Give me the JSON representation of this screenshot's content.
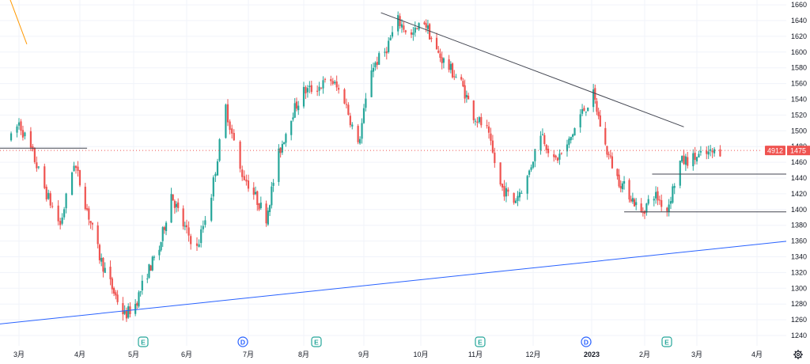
{
  "chart_data": {
    "type": "candlestick",
    "title": "",
    "ticker_code": "4912",
    "last_price": "1475",
    "ylim": [
      1230,
      1665
    ],
    "y_ticks": [
      1240,
      1260,
      1280,
      1300,
      1320,
      1340,
      1360,
      1380,
      1400,
      1420,
      1440,
      1460,
      1480,
      1500,
      1520,
      1540,
      1560,
      1580,
      1600,
      1620,
      1640,
      1660
    ],
    "x_ticks": [
      "3月",
      "4月",
      "5月",
      "6月",
      "7月",
      "8月",
      "9月",
      "10月",
      "11月",
      "12月",
      "2023",
      "2月",
      "3月",
      "4月"
    ],
    "grid": true,
    "events": [
      {
        "label": "E",
        "type": "earnings"
      },
      {
        "label": "D",
        "type": "dividend"
      },
      {
        "label": "E",
        "type": "earnings"
      },
      {
        "label": "E",
        "type": "earnings"
      },
      {
        "label": "D",
        "type": "dividend"
      },
      {
        "label": "E",
        "type": "earnings"
      }
    ],
    "price_path": [
      [
        "2022-02-25",
        1490
      ],
      [
        "2022-03-01",
        1510
      ],
      [
        "2022-03-08",
        1470
      ],
      [
        "2022-03-15",
        1420
      ],
      [
        "2022-03-22",
        1380
      ],
      [
        "2022-03-29",
        1460
      ],
      [
        "2022-04-05",
        1400
      ],
      [
        "2022-04-12",
        1340
      ],
      [
        "2022-04-19",
        1300
      ],
      [
        "2022-04-26",
        1265
      ],
      [
        "2022-05-02",
        1280
      ],
      [
        "2022-05-09",
        1320
      ],
      [
        "2022-05-16",
        1350
      ],
      [
        "2022-05-23",
        1420
      ],
      [
        "2022-05-30",
        1380
      ],
      [
        "2022-06-06",
        1350
      ],
      [
        "2022-06-13",
        1420
      ],
      [
        "2022-06-20",
        1530
      ],
      [
        "2022-06-27",
        1450
      ],
      [
        "2022-07-04",
        1420
      ],
      [
        "2022-07-11",
        1390
      ],
      [
        "2022-07-18",
        1470
      ],
      [
        "2022-07-25",
        1520
      ],
      [
        "2022-08-01",
        1550
      ],
      [
        "2022-08-08",
        1555
      ],
      [
        "2022-08-15",
        1565
      ],
      [
        "2022-08-22",
        1540
      ],
      [
        "2022-08-29",
        1480
      ],
      [
        "2022-09-05",
        1580
      ],
      [
        "2022-09-12",
        1600
      ],
      [
        "2022-09-19",
        1640
      ],
      [
        "2022-09-26",
        1620
      ],
      [
        "2022-10-03",
        1640
      ],
      [
        "2022-10-10",
        1600
      ],
      [
        "2022-10-17",
        1580
      ],
      [
        "2022-10-24",
        1560
      ],
      [
        "2022-10-31",
        1520
      ],
      [
        "2022-11-07",
        1500
      ],
      [
        "2022-11-14",
        1430
      ],
      [
        "2022-11-21",
        1410
      ],
      [
        "2022-11-28",
        1440
      ],
      [
        "2022-12-05",
        1500
      ],
      [
        "2022-12-12",
        1460
      ],
      [
        "2022-12-19",
        1480
      ],
      [
        "2022-12-26",
        1520
      ],
      [
        "2023-01-02",
        1545
      ],
      [
        "2023-01-09",
        1480
      ],
      [
        "2023-01-16",
        1440
      ],
      [
        "2023-01-23",
        1420
      ],
      [
        "2023-01-30",
        1395
      ],
      [
        "2023-02-06",
        1420
      ],
      [
        "2023-02-13",
        1400
      ],
      [
        "2023-02-20",
        1460
      ],
      [
        "2023-02-27",
        1465
      ],
      [
        "2023-03-06",
        1470
      ],
      [
        "2023-03-13",
        1475
      ]
    ],
    "trendlines": [
      {
        "color": "#ff9800",
        "from": [
          "2022-02-15",
          1730
        ],
        "to": [
          "2022-03-05",
          1610
        ]
      },
      {
        "color": "#2962ff",
        "from": [
          "2022-02-13",
          1253
        ],
        "to": [
          "2023-04-25",
          1362
        ]
      },
      {
        "color": "#434651",
        "from": [
          "2022-09-10",
          1650
        ],
        "to": [
          "2023-02-22",
          1505
        ]
      },
      {
        "color": "#434651",
        "from": [
          "2022-02-13",
          1478
        ],
        "to": [
          "2022-04-05",
          1478
        ]
      },
      {
        "color": "#434651",
        "from": [
          "2023-02-05",
          1445
        ],
        "to": [
          "2023-04-25",
          1445
        ]
      },
      {
        "color": "#434651",
        "from": [
          "2023-01-20",
          1397
        ],
        "to": [
          "2023-04-25",
          1397
        ]
      }
    ],
    "colors": {
      "up": "#26a69a",
      "down": "#ef5350",
      "grid": "#f0f3fa",
      "axis_text": "#131722",
      "price_line": "#ef5350"
    }
  }
}
